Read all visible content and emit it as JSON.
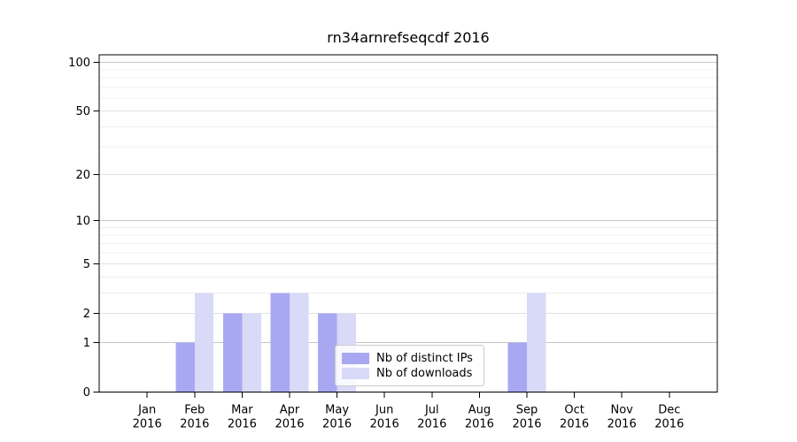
{
  "chart_data": {
    "type": "bar",
    "title": "rn34arnrefseqcdf 2016",
    "categories": [
      "Jan 2016",
      "Feb 2016",
      "Mar 2016",
      "Apr 2016",
      "May 2016",
      "Jun 2016",
      "Jul 2016",
      "Aug 2016",
      "Sep 2016",
      "Oct 2016",
      "Nov 2016",
      "Dec 2016"
    ],
    "series": [
      {
        "name": "Nb of distinct IPs",
        "color": "#a8a8f2",
        "values": [
          0,
          1,
          2,
          3,
          2,
          0,
          0,
          0,
          1,
          0,
          0,
          0
        ]
      },
      {
        "name": "Nb of downloads",
        "color": "#d9d9f8",
        "values": [
          0,
          3,
          2,
          3,
          2,
          0,
          0,
          0,
          3,
          0,
          0,
          0
        ]
      }
    ],
    "yscale": "log1p",
    "y_ticks": [
      0,
      1,
      2,
      5,
      10,
      20,
      50,
      100
    ],
    "ylim": [
      0,
      111
    ],
    "grid": true,
    "legend_position": "lower center"
  }
}
